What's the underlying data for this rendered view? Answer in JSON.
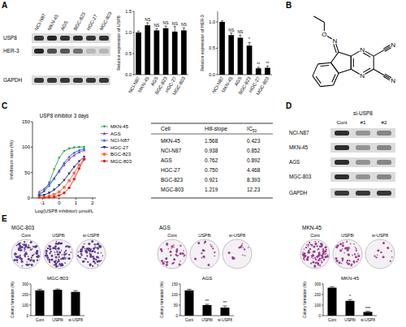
{
  "panel_labels": [
    "A",
    "B",
    "C",
    "D",
    "E"
  ],
  "blot_a": {
    "lanes": [
      "NCI-N87",
      "MKN-45",
      "AGS",
      "BGC-823",
      "HGC-27",
      "MGC-803"
    ],
    "rows": [
      "USP8",
      "HER-3",
      "GAPDH"
    ]
  },
  "structure_b": {
    "atoms": [
      "N",
      "O",
      "N",
      "N",
      "N",
      "N"
    ]
  },
  "table_c": {
    "header": [
      "Cell",
      "Hill-slope",
      {
        "text": "IC",
        "sub": "50"
      }
    ],
    "rows": [
      [
        "MKN-45",
        "1.568",
        "0.423"
      ],
      [
        "NCI-N87",
        "0.938",
        "0.852"
      ],
      [
        "AGS",
        "0.762",
        "0.892"
      ],
      [
        "HGC-27",
        "0.750",
        "4.468"
      ],
      [
        "BGC-823",
        "0.921",
        "8.393"
      ],
      [
        "MGC-803",
        "1.219",
        "12.23"
      ]
    ]
  },
  "blot_d": {
    "title": "si-USP8",
    "lanes": [
      "Cont",
      "#1",
      "#2"
    ],
    "rows": [
      "NCI-N87",
      "MKN-45",
      "AGS",
      "MGC-803",
      "GAPDH"
    ]
  },
  "chart_data": [
    {
      "type": "bar",
      "y_label": "Relative expression of USP8",
      "categories": [
        "NCI-N87",
        "MKN-45",
        "AGS",
        "BGC-823",
        "HGC-27",
        "MGC-803"
      ],
      "values": [
        1.0,
        1.17,
        1.05,
        1.1,
        1.02,
        1.05
      ],
      "errors": [
        0.03,
        0.06,
        0.04,
        0.05,
        0.12,
        0.06
      ],
      "annotations": [
        null,
        "NS",
        "NS",
        "NS",
        "NS",
        "NS"
      ],
      "color": "#000000",
      "ylim": [
        0,
        1.5
      ],
      "yticks": [
        {
          "value": 0,
          "label": "0.0"
        },
        0.5,
        {
          "value": 1,
          "label": "1.0"
        },
        1.5
      ]
    },
    {
      "type": "bar",
      "y_label": "Relative expression of HER-3",
      "categories": [
        "NCI-N87",
        "MKN-45",
        "AGS",
        "BGC-823",
        "HGC-27",
        "MGC-803"
      ],
      "values": [
        1.0,
        0.75,
        0.7,
        0.55,
        0.12,
        0.13
      ],
      "errors": [
        0.02,
        0.04,
        0.05,
        0.06,
        0.02,
        0.03
      ],
      "annotations": [
        null,
        "NS",
        "NS",
        "*",
        "**",
        "**"
      ],
      "color": "#000000",
      "ylim": [
        0,
        1.2
      ],
      "yticks": [
        {
          "value": 0,
          "label": "0.0"
        },
        0.5,
        {
          "value": 1,
          "label": "1.0"
        }
      ]
    },
    {
      "type": "line",
      "title": "USP8 inhibitor 3 days",
      "x_label": "Log(USP8 inhibitor) μmol/L",
      "y_label": "Inhibition ratio (%)",
      "legend": "upper right",
      "x": [
        -1.2,
        -0.9,
        -0.6,
        -0.3,
        0,
        0.3,
        0.6,
        0.9,
        1.2,
        1.5
      ],
      "series": [
        {
          "name": "MKN-45",
          "color": "#22a84a",
          "marker": "triangle-down",
          "values": [
            5,
            13,
            30,
            56,
            79,
            92,
            97,
            99,
            100,
            100
          ]
        },
        {
          "name": "AGS",
          "color": "#8b3fbf",
          "marker": "triangle",
          "values": [
            12,
            18,
            28,
            39,
            52,
            65,
            76,
            84,
            90,
            94
          ]
        },
        {
          "name": "NCI-N87",
          "color": "#1f5fcf",
          "marker": "triangle",
          "values": [
            8,
            14,
            24,
            38,
            54,
            69,
            81,
            89,
            94,
            97
          ]
        },
        {
          "name": "HGC-27",
          "color": "#1a237e",
          "marker": "triangle-down",
          "values": [
            4,
            6,
            10,
            16,
            25,
            35,
            48,
            61,
            72,
            81
          ]
        },
        {
          "name": "BGC-823",
          "color": "#ff6a3d",
          "marker": "square",
          "values": [
            1,
            2,
            4,
            7,
            12,
            21,
            34,
            49,
            65,
            77
          ]
        },
        {
          "name": "MGC-803",
          "color": "#e0201b",
          "marker": "circle",
          "values": [
            0,
            0,
            1,
            2,
            5,
            10,
            20,
            37,
            58,
            76
          ]
        }
      ],
      "xlim": [
        -1.6,
        2.2
      ],
      "xticks": [
        -1,
        0,
        1,
        2
      ],
      "ylim": [
        0,
        150
      ],
      "yticks": [
        0,
        50,
        100,
        150
      ]
    },
    {
      "type": "bar",
      "title": "MGC-803",
      "y_label": "Colony formation (%)",
      "categories": [
        "Cont",
        "USP8i",
        "si-USP8"
      ],
      "values": [
        240,
        245,
        225
      ],
      "errors": [
        10,
        8,
        12
      ],
      "color": "#000000",
      "ylim": [
        0,
        300
      ],
      "yticks": [
        0,
        100,
        200,
        300
      ]
    },
    {
      "type": "bar",
      "title": "AGS",
      "y_label": "Colony formation (%)",
      "categories": [
        "Cont",
        "USP8i",
        "si-USP8"
      ],
      "values": [
        120,
        50,
        38
      ],
      "errors": [
        5,
        4,
        8
      ],
      "annotations": [
        null,
        "**",
        "**"
      ],
      "color": "#000000",
      "ylim": [
        0,
        150
      ],
      "yticks": [
        0,
        50,
        100,
        150
      ]
    },
    {
      "type": "bar",
      "title": "MKN-45",
      "y_label": "Colony formation (%)",
      "categories": [
        "Cont",
        "USP8i",
        "si-USP8"
      ],
      "values": [
        265,
        140,
        35
      ],
      "errors": [
        10,
        12,
        6
      ],
      "annotations": [
        null,
        "*",
        "***"
      ],
      "color": "#000000",
      "ylim": [
        0,
        300
      ],
      "yticks": [
        0,
        100,
        200,
        300
      ]
    }
  ]
}
